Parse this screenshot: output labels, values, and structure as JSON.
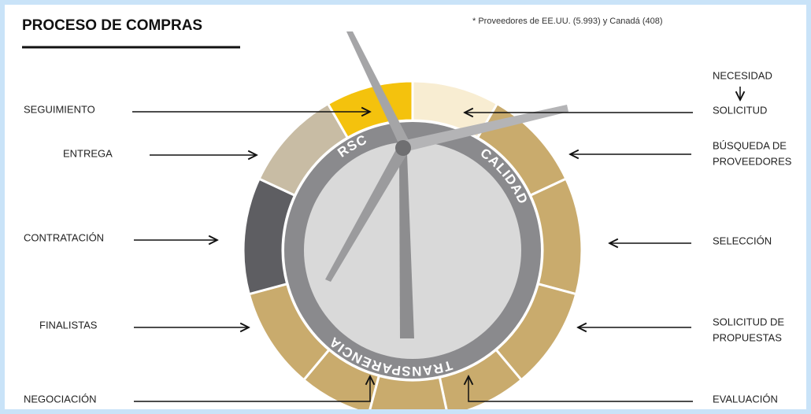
{
  "header": {
    "title": "PROCESO DE COMPRAS",
    "note": "* Proveedores de  EE.UU. (5.993) y Canadá (408)"
  },
  "left_labels": [
    {
      "lines": [
        "SEGUIMIENTO"
      ]
    },
    {
      "lines": [
        "ENTREGA"
      ]
    },
    {
      "lines": [
        "CONTRATACIÓN"
      ]
    },
    {
      "lines": [
        "FINALISTAS"
      ]
    },
    {
      "lines": [
        "NEGOCIACIÓN"
      ]
    }
  ],
  "right_labels": [
    {
      "lines": [
        "NECESIDAD",
        "SOLICITUD"
      ]
    },
    {
      "lines": [
        "BÚSQUEDA DE",
        "PROVEEDORES"
      ]
    },
    {
      "lines": [
        "SELECCIÓN"
      ]
    },
    {
      "lines": [
        "SOLICITUD DE",
        "PROPUESTAS"
      ]
    },
    {
      "lines": [
        "EVALUACIÓN"
      ]
    }
  ],
  "ring_labels": [
    "RSC",
    "CALIDAD",
    "TRANSPARENCIA"
  ]
}
